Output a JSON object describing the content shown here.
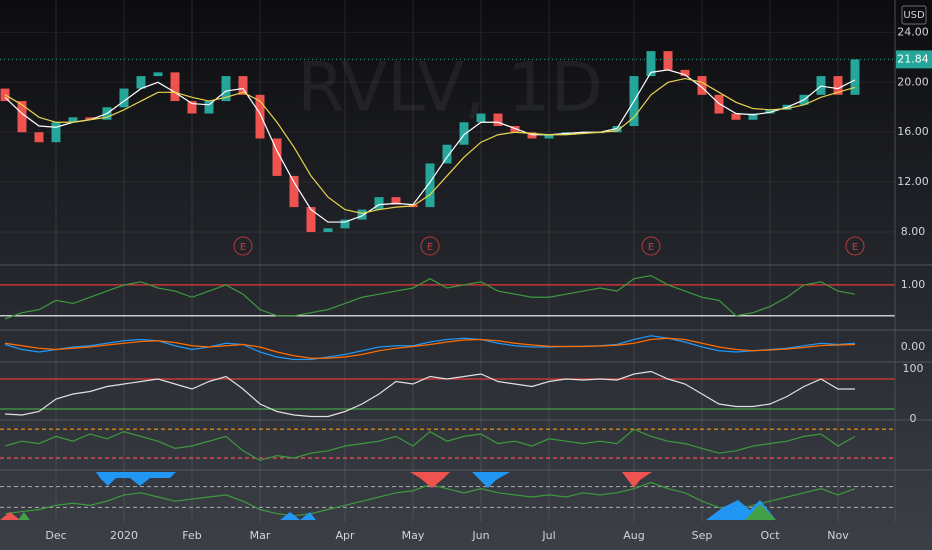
{
  "chart_data": [
    {
      "type": "candlestick",
      "title": "RVLV, 1D",
      "currency": "USD",
      "up_color": "#26a69a",
      "down_color": "#ef5350",
      "grid": true,
      "categories": [
        null,
        null,
        null,
        "Dec",
        null,
        null,
        null,
        "2020",
        null,
        null,
        null,
        "Feb",
        null,
        null,
        null,
        "Mar",
        null,
        null,
        null,
        null,
        "Apr",
        null,
        null,
        null,
        "May",
        null,
        null,
        null,
        "Jun",
        null,
        null,
        null,
        "Jul",
        null,
        null,
        null,
        null,
        "Aug",
        null,
        null,
        null,
        "Sep",
        null,
        null,
        null,
        "Oct",
        null,
        null,
        null,
        "Nov",
        null
      ],
      "open": [
        19.5,
        18.5,
        16.0,
        15.2,
        16.8,
        17.2,
        17.0,
        18.0,
        19.5,
        20.5,
        20.8,
        18.5,
        17.5,
        18.5,
        20.5,
        19.0,
        15.5,
        12.5,
        10.0,
        8.0,
        8.3,
        9.0,
        9.8,
        10.8,
        10.2,
        10.0,
        13.5,
        15.0,
        16.8,
        17.5,
        16.5,
        16.0,
        15.5,
        15.8,
        16.0,
        16.0,
        16.0,
        16.5,
        20.5,
        22.5,
        21.0,
        20.5,
        19.0,
        17.5,
        17.0,
        17.5,
        17.8,
        18.2,
        19.0,
        20.5,
        19.0
      ],
      "close": [
        18.5,
        16.0,
        15.2,
        16.8,
        17.2,
        17.0,
        18.0,
        19.5,
        20.5,
        20.8,
        18.5,
        17.5,
        18.5,
        20.5,
        19.0,
        15.5,
        12.5,
        10.0,
        8.0,
        8.3,
        9.0,
        9.8,
        10.8,
        10.2,
        10.0,
        13.5,
        15.0,
        16.8,
        17.5,
        16.5,
        16.0,
        15.5,
        15.8,
        16.0,
        16.0,
        16.0,
        16.5,
        20.5,
        22.5,
        21.0,
        20.5,
        19.0,
        17.5,
        17.0,
        17.5,
        17.8,
        18.2,
        19.0,
        20.5,
        19.0,
        21.84
      ],
      "series": [
        {
          "color": "#ffffff",
          "values": [
            18.8,
            17.5,
            16.5,
            16.4,
            16.8,
            17.0,
            17.5,
            18.5,
            19.5,
            20.0,
            19.2,
            18.3,
            18.2,
            19.3,
            19.5,
            17.5,
            14.5,
            12.0,
            9.8,
            8.8,
            8.8,
            9.3,
            10.2,
            10.3,
            10.2,
            12.0,
            14.0,
            15.8,
            16.8,
            16.8,
            16.3,
            15.8,
            15.8,
            15.9,
            16.0,
            16.0,
            16.3,
            18.5,
            20.8,
            21.0,
            20.6,
            19.6,
            18.3,
            17.5,
            17.4,
            17.6,
            18.0,
            18.6,
            19.7,
            19.5,
            20.2
          ]
        },
        {
          "color": "#e8d44d",
          "values": [
            19.0,
            18.2,
            17.2,
            16.8,
            16.8,
            17.0,
            17.2,
            17.8,
            18.5,
            19.2,
            19.2,
            18.8,
            18.5,
            18.8,
            19.2,
            18.5,
            16.8,
            14.8,
            12.5,
            10.8,
            9.8,
            9.5,
            9.8,
            10.0,
            10.1,
            11.0,
            12.5,
            14.0,
            15.2,
            15.8,
            16.0,
            15.9,
            15.8,
            15.8,
            15.9,
            16.0,
            16.1,
            17.2,
            19.0,
            20.0,
            20.3,
            20.0,
            19.2,
            18.4,
            17.9,
            17.8,
            17.9,
            18.2,
            18.8,
            19.2,
            19.6
          ]
        }
      ],
      "ylim": [
        5.6,
        26.6
      ],
      "yticks": [
        {
          "value": 24,
          "label": "24.00"
        },
        {
          "value": 20,
          "label": "20.00"
        },
        {
          "value": 16,
          "label": "16.00"
        },
        {
          "value": 12,
          "label": "12.00"
        },
        {
          "value": 8,
          "label": "8.00"
        }
      ],
      "events": [
        {
          "label": "E",
          "index": 14
        },
        {
          "label": "E",
          "index": 25
        },
        {
          "label": "E",
          "index": 38
        },
        {
          "label": "E",
          "index": 50
        }
      ]
    },
    {
      "type": "line",
      "ylim": [
        0.27,
        1.29
      ],
      "yticks": [
        {
          "value": 1,
          "label": "1.00"
        }
      ],
      "levels": [
        {
          "value": 1,
          "color": "#e53935"
        },
        {
          "value": 0.5,
          "color": "#ffffff"
        }
      ],
      "series": [
        {
          "color": "#3e9a3e",
          "values": [
            0.45,
            0.55,
            0.6,
            0.75,
            0.7,
            0.8,
            0.9,
            1.0,
            1.05,
            0.95,
            0.9,
            0.8,
            0.9,
            1.0,
            0.85,
            0.6,
            0.5,
            0.5,
            0.55,
            0.6,
            0.7,
            0.8,
            0.85,
            0.9,
            0.95,
            1.1,
            0.95,
            1.0,
            1.05,
            0.9,
            0.85,
            0.8,
            0.8,
            0.85,
            0.9,
            0.95,
            0.9,
            1.1,
            1.15,
            1.0,
            0.9,
            0.8,
            0.75,
            0.5,
            0.55,
            0.65,
            0.8,
            1.0,
            1.05,
            0.9,
            0.85
          ]
        }
      ]
    },
    {
      "type": "line",
      "ylim": [
        -0.6,
        0.6
      ],
      "yticks": [
        {
          "value": 0,
          "label": "0.00"
        }
      ],
      "series": [
        {
          "color": "#2196f3",
          "values": [
            0.1,
            -0.1,
            -0.2,
            -0.1,
            0,
            0.05,
            0.15,
            0.25,
            0.3,
            0.25,
            0.05,
            -0.1,
            0,
            0.15,
            0.1,
            -0.2,
            -0.4,
            -0.5,
            -0.5,
            -0.4,
            -0.3,
            -0.15,
            0,
            0.05,
            0.05,
            0.2,
            0.3,
            0.35,
            0.3,
            0.15,
            0.05,
            0,
            0,
            0.02,
            0.03,
            0.05,
            0.1,
            0.3,
            0.45,
            0.35,
            0.2,
            0,
            -0.15,
            -0.2,
            -0.15,
            -0.1,
            -0.05,
            0.05,
            0.15,
            0.1,
            0.15
          ]
        },
        {
          "color": "#ff6d00",
          "values": [
            0.15,
            0.05,
            -0.05,
            -0.1,
            -0.05,
            0,
            0.08,
            0.15,
            0.22,
            0.25,
            0.18,
            0.05,
            0,
            0.05,
            0.1,
            0,
            -0.2,
            -0.35,
            -0.45,
            -0.45,
            -0.4,
            -0.3,
            -0.15,
            -0.05,
            0.02,
            0.1,
            0.2,
            0.28,
            0.3,
            0.25,
            0.15,
            0.08,
            0.03,
            0.02,
            0.02,
            0.04,
            0.07,
            0.15,
            0.3,
            0.35,
            0.3,
            0.15,
            0,
            -0.1,
            -0.15,
            -0.12,
            -0.08,
            -0.02,
            0.06,
            0.08,
            0.1
          ]
        }
      ]
    },
    {
      "type": "line",
      "ylim": [
        -2,
        110
      ],
      "yticks": [
        100,
        0
      ],
      "levels": [
        {
          "value": 80,
          "color": "#e53935"
        },
        {
          "value": 20,
          "color": "#43a047"
        }
      ],
      "series": [
        {
          "color": "#e0e0e0",
          "values": [
            10,
            8,
            15,
            40,
            50,
            55,
            65,
            70,
            75,
            80,
            70,
            60,
            75,
            85,
            60,
            30,
            15,
            8,
            5,
            5,
            15,
            30,
            50,
            75,
            70,
            85,
            80,
            85,
            90,
            75,
            70,
            65,
            75,
            80,
            78,
            80,
            78,
            90,
            95,
            80,
            70,
            50,
            30,
            25,
            25,
            30,
            45,
            65,
            80,
            60,
            60
          ]
        }
      ]
    },
    {
      "type": "line",
      "ylim": [
        0,
        1
      ],
      "dashed_levels": true,
      "levels": [
        {
          "value": 0.85,
          "color": "#ff9800"
        },
        {
          "value": 0.25,
          "color": "#ef5350"
        }
      ],
      "series": [
        {
          "color": "#3e9a3e",
          "values": [
            0.5,
            0.6,
            0.55,
            0.7,
            0.6,
            0.75,
            0.65,
            0.8,
            0.7,
            0.6,
            0.45,
            0.5,
            0.6,
            0.7,
            0.4,
            0.2,
            0.3,
            0.25,
            0.35,
            0.4,
            0.5,
            0.55,
            0.6,
            0.7,
            0.5,
            0.8,
            0.6,
            0.7,
            0.75,
            0.55,
            0.6,
            0.5,
            0.65,
            0.6,
            0.55,
            0.6,
            0.55,
            0.85,
            0.7,
            0.6,
            0.55,
            0.45,
            0.35,
            0.4,
            0.5,
            0.55,
            0.6,
            0.7,
            0.75,
            0.5,
            0.7
          ]
        }
      ]
    },
    {
      "type": "line",
      "ylim": [
        -0.1,
        1.1
      ],
      "dashed_levels": true,
      "levels": [
        {
          "value": 0.75,
          "color": "#9e9e9e"
        },
        {
          "value": 0.25,
          "color": "#9e9e9e"
        }
      ],
      "series": [
        {
          "color": "#3e9a3e",
          "values": [
            0.1,
            0.15,
            0.2,
            0.3,
            0.35,
            0.3,
            0.4,
            0.55,
            0.6,
            0.5,
            0.4,
            0.45,
            0.5,
            0.55,
            0.4,
            0.2,
            0.1,
            0.05,
            0.1,
            0.2,
            0.3,
            0.4,
            0.5,
            0.6,
            0.65,
            0.8,
            0.7,
            0.6,
            0.7,
            0.6,
            0.55,
            0.5,
            0.55,
            0.5,
            0.6,
            0.55,
            0.6,
            0.7,
            0.85,
            0.7,
            0.6,
            0.4,
            0.25,
            0.2,
            0.3,
            0.4,
            0.5,
            0.6,
            0.7,
            0.55,
            0.7
          ]
        }
      ]
    }
  ]
}
